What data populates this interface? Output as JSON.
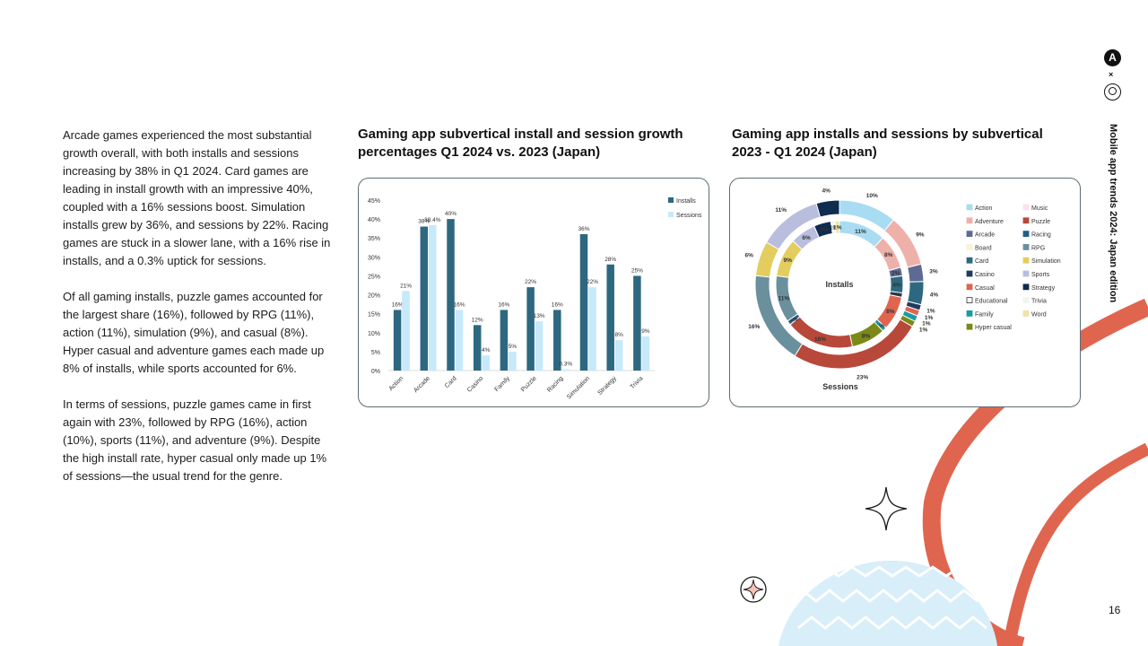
{
  "side_label": "Mobile app trends 2024: Japan edition",
  "page_number": "16",
  "body_paragraphs": [
    "Arcade games experienced the most substantial growth overall, with both installs and sessions increasing by 38% in Q1 2024. Card games are leading in install growth with an impressive 40%, coupled with a 16% sessions boost. Simulation installs grew by 36%, and sessions by 22%. Racing games are stuck in a slower lane, with a 16% rise in installs, and a 0.3% uptick for sessions.",
    "Of all gaming installs, puzzle games accounted for the largest share (16%), followed by RPG (11%), action (11%), simulation (9%), and casual (8%). Hyper casual and adventure games each made up 8% of installs, while sports accounted for 6%.",
    "In terms of sessions, puzzle games came in first again with 23%, followed by RPG (16%), action (10%), sports (11%), and adventure (9%). Despite the high install rate, hyper casual only made up 1% of sessions—the usual trend for the genre."
  ],
  "colors": {
    "installs": "#2d6880",
    "sessions": "#c6e9fb",
    "accent_red": "#e0654f",
    "card_border": "#5d6b70"
  },
  "chart_data": [
    {
      "type": "bar",
      "title": "Gaming app subvertical install and session growth percentages Q1 2024 vs. 2023 (Japan)",
      "categories": [
        "Action",
        "Arcade",
        "Card",
        "Casino",
        "Family",
        "Puzzle",
        "Racing",
        "Simulation",
        "Strategy",
        "Trivia"
      ],
      "series": [
        {
          "name": "Installs",
          "values": [
            16,
            38,
            40,
            12,
            16,
            22,
            16,
            36,
            28,
            25
          ],
          "labels": [
            "16%",
            "38%",
            "40%",
            "12%",
            "16%",
            "22%",
            "16%",
            "36%",
            "28%",
            "25%"
          ]
        },
        {
          "name": "Sessions",
          "values": [
            21,
            38.4,
            16,
            4,
            5,
            13,
            0.3,
            22,
            8,
            9
          ],
          "labels": [
            "21%",
            "38.4%",
            "16%",
            "4%",
            "5%",
            "13%",
            "0.3%",
            "22%",
            "8%",
            "9%"
          ]
        }
      ],
      "yticks": [
        "0%",
        "5%",
        "10%",
        "15%",
        "20%",
        "25%",
        "30%",
        "35%",
        "40%",
        "45%"
      ],
      "ylim": [
        0,
        45
      ],
      "legend_position": "top-right",
      "grid": false
    },
    {
      "type": "pie",
      "subtype": "nested-donut",
      "title": "Gaming app installs and sessions by subvertical 2023 - Q1 2024 (Japan)",
      "inner_label": "Installs",
      "outer_label": "Sessions",
      "categories": [
        {
          "name": "Action",
          "color": "#a8dcf2"
        },
        {
          "name": "Adventure",
          "color": "#eeb1aa"
        },
        {
          "name": "Arcade",
          "color": "#5d6b94"
        },
        {
          "name": "Board",
          "color": "#fbf1d6"
        },
        {
          "name": "Card",
          "color": "#2d6880"
        },
        {
          "name": "Casino",
          "color": "#233a5c"
        },
        {
          "name": "Casual",
          "color": "#e0654f"
        },
        {
          "name": "Educational",
          "color": "#ffffff"
        },
        {
          "name": "Family",
          "color": "#1a9aa6"
        },
        {
          "name": "Hyper casual",
          "color": "#7b8a16"
        },
        {
          "name": "Music",
          "color": "#f6e4ee"
        },
        {
          "name": "Puzzle",
          "color": "#b8483a"
        },
        {
          "name": "Racing",
          "color": "#1f5f8c"
        },
        {
          "name": "RPG",
          "color": "#6a909e"
        },
        {
          "name": "Simulation",
          "color": "#e3cd5e"
        },
        {
          "name": "Sports",
          "color": "#b9bedf"
        },
        {
          "name": "Strategy",
          "color": "#0e2d4f"
        },
        {
          "name": "Trivia",
          "color": "#f1f5f1"
        },
        {
          "name": "Word",
          "color": "#f0e3a7"
        }
      ],
      "installs_ring": [
        {
          "name": "Action",
          "value": 11,
          "label": "11%"
        },
        {
          "name": "Adventure",
          "value": 8,
          "label": "8%"
        },
        {
          "name": "Arcade",
          "value": 2,
          "label": "2%"
        },
        {
          "name": "Card",
          "value": 4,
          "label": "4%"
        },
        {
          "name": "Casino",
          "value": 1,
          "label": "1%"
        },
        {
          "name": "Casual",
          "value": 8,
          "label": "8%"
        },
        {
          "name": "Family",
          "value": 1,
          "label": "1%"
        },
        {
          "name": "Hyper casual",
          "value": 8,
          "label": "8%"
        },
        {
          "name": "Puzzle",
          "value": 16,
          "label": "16%"
        },
        {
          "name": "Racing",
          "value": 1,
          "label": "1%"
        },
        {
          "name": "RPG",
          "value": 11,
          "label": "11%"
        },
        {
          "name": "Simulation",
          "value": 9,
          "label": "9%"
        },
        {
          "name": "Sports",
          "value": 6,
          "label": "6%"
        },
        {
          "name": "Strategy",
          "value": 4,
          "label": "4%"
        },
        {
          "name": "Trivia",
          "value": 1,
          "label": "1%"
        },
        {
          "name": "Word",
          "value": 1,
          "label": "1%"
        }
      ],
      "sessions_ring": [
        {
          "name": "Action",
          "value": 10,
          "label": "10%"
        },
        {
          "name": "Adventure",
          "value": 9,
          "label": "9%"
        },
        {
          "name": "Arcade",
          "value": 3,
          "label": "3%"
        },
        {
          "name": "Card",
          "value": 4,
          "label": "4%"
        },
        {
          "name": "Casino",
          "value": 1,
          "label": "1%"
        },
        {
          "name": "Casual",
          "value": 1,
          "label": "1%"
        },
        {
          "name": "Family",
          "value": 1,
          "label": "1%"
        },
        {
          "name": "Hyper casual",
          "value": 1,
          "label": "1%"
        },
        {
          "name": "Puzzle",
          "value": 23,
          "label": "23%"
        },
        {
          "name": "RPG",
          "value": 16,
          "label": "16%"
        },
        {
          "name": "Simulation",
          "value": 6,
          "label": "6%"
        },
        {
          "name": "Sports",
          "value": 11,
          "label": "11%"
        },
        {
          "name": "Strategy",
          "value": 4,
          "label": "4%"
        }
      ],
      "legend_position": "right"
    }
  ]
}
